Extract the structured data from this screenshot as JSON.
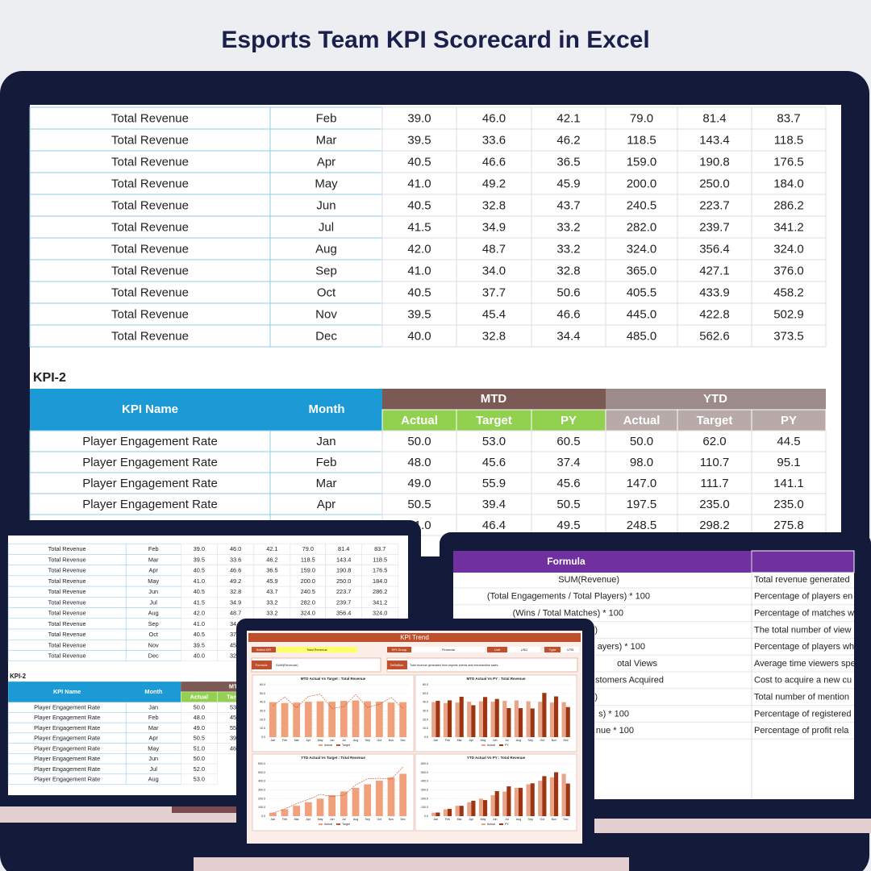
{
  "title": "Esports Team KPI Scorecard in Excel",
  "revenue_table": {
    "rows": [
      [
        "Total Revenue",
        "Feb",
        "39.0",
        "46.0",
        "42.1",
        "79.0",
        "81.4",
        "83.7"
      ],
      [
        "Total Revenue",
        "Mar",
        "39.5",
        "33.6",
        "46.2",
        "118.5",
        "143.4",
        "118.5"
      ],
      [
        "Total Revenue",
        "Apr",
        "40.5",
        "46.6",
        "36.5",
        "159.0",
        "190.8",
        "176.5"
      ],
      [
        "Total Revenue",
        "May",
        "41.0",
        "49.2",
        "45.9",
        "200.0",
        "250.0",
        "184.0"
      ],
      [
        "Total Revenue",
        "Jun",
        "40.5",
        "32.8",
        "43.7",
        "240.5",
        "223.7",
        "286.2"
      ],
      [
        "Total Revenue",
        "Jul",
        "41.5",
        "34.9",
        "33.2",
        "282.0",
        "239.7",
        "341.2"
      ],
      [
        "Total Revenue",
        "Aug",
        "42.0",
        "48.7",
        "33.2",
        "324.0",
        "356.4",
        "324.0"
      ],
      [
        "Total Revenue",
        "Sep",
        "41.0",
        "34.0",
        "32.8",
        "365.0",
        "427.1",
        "376.0"
      ],
      [
        "Total Revenue",
        "Oct",
        "40.5",
        "37.7",
        "50.6",
        "405.5",
        "433.9",
        "458.2"
      ],
      [
        "Total Revenue",
        "Nov",
        "39.5",
        "45.4",
        "46.6",
        "445.0",
        "422.8",
        "502.9"
      ],
      [
        "Total Revenue",
        "Dec",
        "40.0",
        "32.8",
        "34.4",
        "485.0",
        "562.6",
        "373.5"
      ]
    ]
  },
  "kpi2": {
    "label": "KPI-2",
    "kpi_name": "KPI Name",
    "month": "Month",
    "mtd": "MTD",
    "ytd": "YTD",
    "subheaders": [
      "Actual",
      "Target",
      "PY",
      "Actual",
      "Target",
      "PY"
    ],
    "rows": [
      [
        "Player Engagement Rate",
        "Jan",
        "50.0",
        "53.0",
        "60.5",
        "50.0",
        "62.0",
        "44.5"
      ],
      [
        "Player Engagement Rate",
        "Feb",
        "48.0",
        "45.6",
        "37.4",
        "98.0",
        "110.7",
        "95.1"
      ],
      [
        "Player Engagement Rate",
        "Mar",
        "49.0",
        "55.9",
        "45.6",
        "147.0",
        "111.7",
        "141.1"
      ],
      [
        "Player Engagement Rate",
        "Apr",
        "50.5",
        "39.4",
        "50.5",
        "197.5",
        "235.0",
        "235.0"
      ],
      [
        "Player Engagement Rate",
        "May",
        "51.0",
        "46.4",
        "49.5",
        "248.5",
        "298.2",
        "275.8"
      ],
      [
        "Player Engagement Rate",
        "Jun",
        "50.0"
      ],
      [
        "Player Engagement Rate",
        "Jul",
        "52.0"
      ],
      [
        "Player Engagement Rate",
        "Aug",
        "53.0"
      ]
    ]
  },
  "formulas": {
    "header": "Formula",
    "rows": [
      [
        "SUM(Revenue)",
        "Total revenue generated"
      ],
      [
        "(Total Engagements / Total Players) * 100",
        "Percentage of players en"
      ],
      [
        "(Wins / Total Matches) * 100",
        "Percentage of matches w"
      ],
      [
        ")",
        "The total number of view"
      ],
      [
        "ayers) * 100",
        "Percentage of players wh"
      ],
      [
        "otal Views",
        "Average time viewers spe"
      ],
      [
        "stomers Acquired",
        "Cost to acquire a new cu"
      ],
      [
        ")",
        "Total number of mention"
      ],
      [
        "s) * 100",
        "Percentage of registered"
      ],
      [
        "nue * 100",
        "Percentage of profit rela"
      ]
    ]
  },
  "dashboard": {
    "title": "KPI Trend",
    "filters": [
      "Select KPI",
      "Total Revenue",
      "KPI Group",
      "Financial",
      "Unit",
      "USD",
      "Type",
      "UTB"
    ],
    "formula_label": "Formula",
    "formula": "SUM(Revenue)",
    "definition_label": "Definition",
    "definition": "Total revenue generated from esports events and merchandise sales.",
    "months": [
      "Jan",
      "Feb",
      "Mar",
      "Apr",
      "May",
      "Jun",
      "Jul",
      "Aug",
      "Sep",
      "Oct",
      "Nov",
      "Dec"
    ],
    "charts": [
      {
        "type": "bar_line",
        "title": "MTD Actual Vs Target : Total Revenue",
        "ylim": [
          0,
          60
        ],
        "yticks": [
          {
            "value": 0,
            "label": "0.0"
          },
          {
            "value": 10,
            "label": "10.0"
          },
          {
            "value": 20,
            "label": "20.0"
          },
          {
            "value": 30,
            "label": "30.0"
          },
          {
            "value": 40,
            "label": "40.0"
          },
          {
            "value": 50,
            "label": "50.0"
          },
          {
            "value": 60,
            "label": "60.0"
          }
        ],
        "series": [
          {
            "name": "Actual",
            "color": "#f0a07a",
            "values": [
              40.0,
              39.0,
              39.5,
              40.5,
              41.0,
              40.5,
              41.5,
              42.0,
              41.0,
              40.5,
              39.5,
              40.0
            ]
          },
          {
            "name": "Target",
            "color": "#c0502d",
            "values": [
              35.4,
              46.0,
              33.6,
              46.6,
              49.2,
              32.8,
              34.9,
              48.7,
              34.0,
              37.7,
              45.4,
              32.8
            ]
          }
        ]
      },
      {
        "type": "bar",
        "title": "MTD Actual Vs PY : Total Revenue",
        "ylim": [
          0,
          60
        ],
        "yticks": [
          {
            "value": 0,
            "label": "0.0"
          },
          {
            "value": 10,
            "label": "10.0"
          },
          {
            "value": 20,
            "label": "20.0"
          },
          {
            "value": 30,
            "label": "30.0"
          },
          {
            "value": 40,
            "label": "40.0"
          },
          {
            "value": 50,
            "label": "50.0"
          },
          {
            "value": 60,
            "label": "60.0"
          }
        ],
        "series": [
          {
            "name": "Actual",
            "color": "#e8a58a",
            "values": [
              40.0,
              39.0,
              39.5,
              40.5,
              41.0,
              40.5,
              41.5,
              42.0,
              41.0,
              40.5,
              39.5,
              40.0
            ]
          },
          {
            "name": "PY",
            "color": "#9e3512",
            "values": [
              41.6,
              42.1,
              46.2,
              36.5,
              45.9,
              43.7,
              33.2,
              33.2,
              32.8,
              50.6,
              46.6,
              34.4
            ]
          }
        ]
      },
      {
        "type": "bar_line",
        "title": "YTD Actual Vs Target : Total Revenue",
        "ylim": [
          0,
          600
        ],
        "yticks": [
          {
            "value": 0,
            "label": "0.0"
          },
          {
            "value": 100,
            "label": "100.0"
          },
          {
            "value": 200,
            "label": "200.0"
          },
          {
            "value": 300,
            "label": "300.0"
          },
          {
            "value": 400,
            "label": "400.0"
          },
          {
            "value": 500,
            "label": "500.0"
          },
          {
            "value": 600,
            "label": "600.0"
          }
        ],
        "series": [
          {
            "name": "Actual",
            "color": "#f0a07a",
            "values": [
              40.0,
              79.0,
              118.5,
              159.0,
              200.0,
              240.5,
              282.0,
              324.0,
              365.0,
              405.5,
              445.0,
              485.0
            ]
          },
          {
            "name": "Target",
            "color": "#c0502d",
            "values": [
              35.4,
              81.4,
              143.4,
              190.8,
              250.0,
              223.7,
              239.7,
              356.4,
              427.1,
              433.9,
              422.8,
              562.6
            ]
          }
        ]
      },
      {
        "type": "bar",
        "title": "YTD Actual Vs PY : Total Revenue",
        "ylim": [
          0,
          600
        ],
        "yticks": [
          {
            "value": 0,
            "label": "0.0"
          },
          {
            "value": 100,
            "label": "100.0"
          },
          {
            "value": 200,
            "label": "200.0"
          },
          {
            "value": 300,
            "label": "300.0"
          },
          {
            "value": 400,
            "label": "400.0"
          },
          {
            "value": 500,
            "label": "500.0"
          },
          {
            "value": 600,
            "label": "600.0"
          }
        ],
        "series": [
          {
            "name": "Actual",
            "color": "#e8a58a",
            "values": [
              40.0,
              79.0,
              118.5,
              159.0,
              200.0,
              240.5,
              282.0,
              324.0,
              365.0,
              405.5,
              445.0,
              485.0
            ]
          },
          {
            "name": "PY",
            "color": "#9e3512",
            "values": [
              41.6,
              83.7,
              118.5,
              176.5,
              184.0,
              286.2,
              341.2,
              324.0,
              376.0,
              458.2,
              502.9,
              373.5
            ]
          }
        ]
      }
    ]
  }
}
